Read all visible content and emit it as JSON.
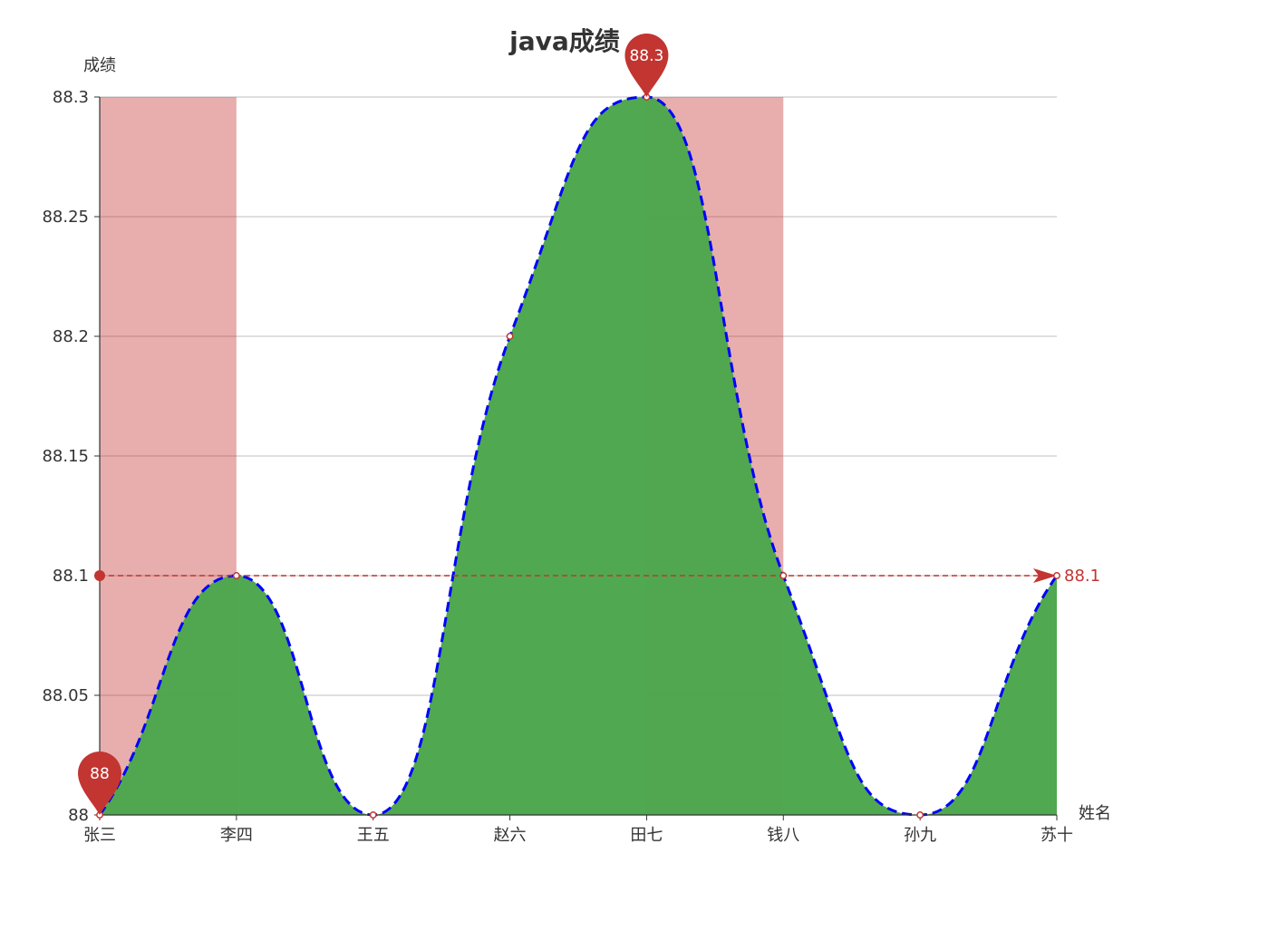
{
  "chart_data": {
    "type": "area",
    "title": "java成绩",
    "xlabel": "姓名",
    "ylabel": "成绩",
    "categories": [
      "张三",
      "李四",
      "王五",
      "赵六",
      "田七",
      "钱八",
      "孙九",
      "苏十"
    ],
    "series": [
      {
        "values": [
          88,
          88.1,
          88,
          88.2,
          88.3,
          88.1,
          88,
          88.1
        ],
        "smooth": true,
        "line_style": "dashed",
        "line_color": "#0000ff",
        "area_color": "#4ca64c"
      }
    ],
    "ylim": [
      88,
      88.3
    ],
    "yticks": [
      88,
      88.05,
      88.1,
      88.15,
      88.2,
      88.25,
      88.3
    ],
    "ytick_labels": [
      "88",
      "88.05",
      "88.1",
      "88.15",
      "88.2",
      "88.25",
      "88.3"
    ],
    "grid": true,
    "mark_points": [
      {
        "kind": "max",
        "category": "田七",
        "value": 88.3,
        "label": "88.3"
      },
      {
        "kind": "min",
        "category": "张三",
        "value": 88,
        "label": "88"
      }
    ],
    "mark_line": {
      "kind": "average",
      "value": 88.1,
      "label": "88.1",
      "color": "#c23531"
    },
    "mark_areas": [
      {
        "from": "张三",
        "to": "李四",
        "color": "#c23531"
      },
      {
        "from": "田七",
        "to": "钱八",
        "color": "#c23531"
      }
    ]
  }
}
